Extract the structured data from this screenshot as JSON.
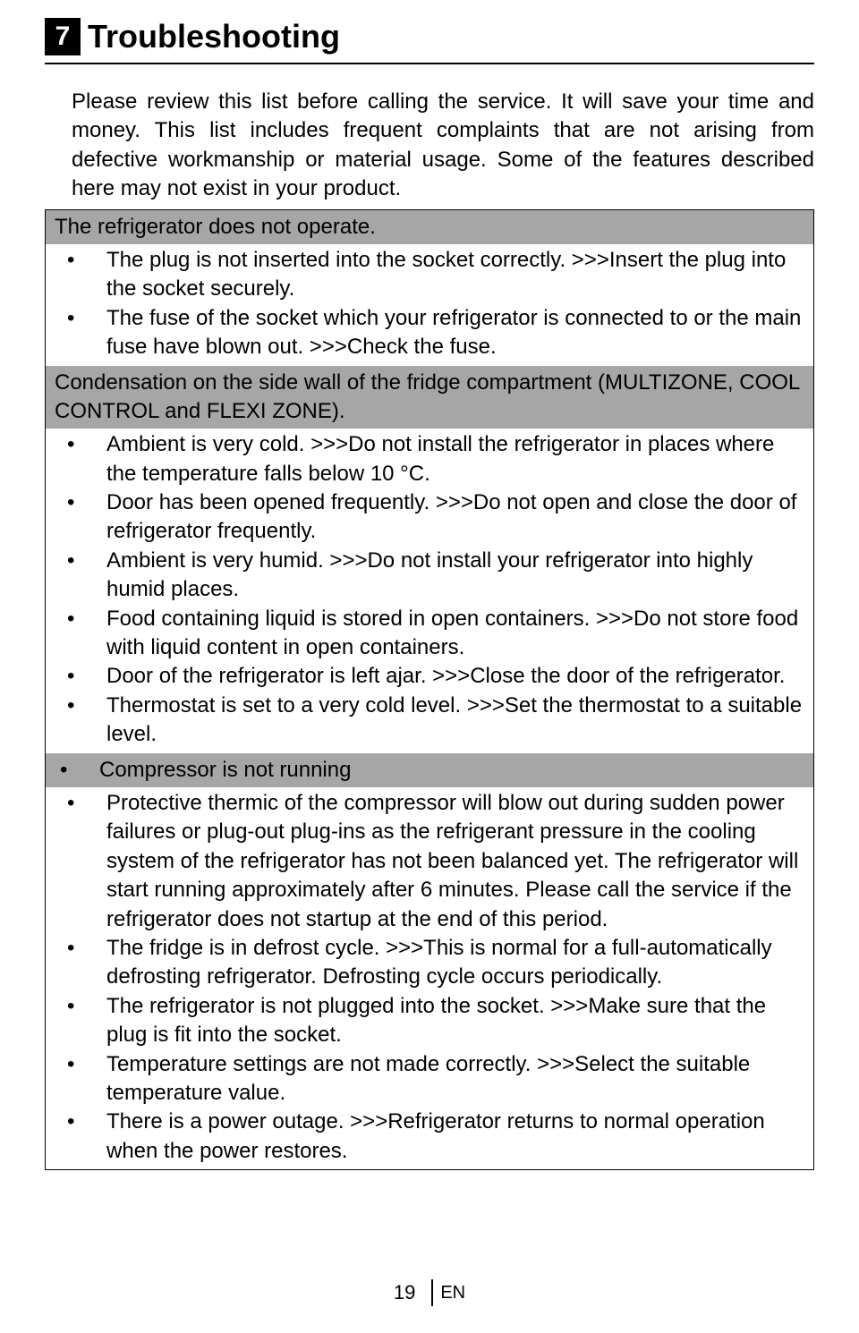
{
  "chapter": {
    "number": "7",
    "title": "Troubleshooting"
  },
  "intro": "Please review this list before calling the service. It will save your time and money. This list includes frequent complaints that are not arising from defective workmanship or material usage. Some of the features described here may not exist in your product.",
  "sections": [
    {
      "header": "The refrigerator does not operate.",
      "items": [
        "The plug is not inserted into the socket correctly. >>>Insert the plug into the socket securely.",
        "The fuse of the socket which your refrigerator is connected to or the main fuse have blown out. >>>Check the fuse."
      ]
    },
    {
      "header": "Condensation on the side wall of the fridge compartment (MULTIZONE, COOL CONTROL and FLEXI ZONE).",
      "items": [
        "Ambient is very cold. >>>Do not install the refrigerator in places where the temperature falls below 10 °C.",
        "Door has been opened frequently. >>>Do not open and close the door of refrigerator frequently.",
        "Ambient is very humid. >>>Do not install your refrigerator into highly humid places.",
        "Food containing liquid is stored in open containers. >>>Do not store food with liquid content in open containers.",
        "Door of the refrigerator is left ajar. >>>Close the door of the refrigerator.",
        "Thermostat is set to a very cold level. >>>Set the thermostat to a suitable level."
      ]
    },
    {
      "header_bulleted": "Compressor is not running",
      "items": [
        "Protective thermic of the compressor will blow out during sudden power failures or plug-out plug-ins as the refrigerant pressure in the cooling system of the refrigerator has not been balanced yet. The refrigerator will start running approximately after 6 minutes. Please call the service if the refrigerator does not startup at the end of this period.",
        "The fridge is in defrost cycle. >>>This is normal for a full-automatically defrosting refrigerator. Defrosting cycle occurs periodically.",
        "The refrigerator is not plugged into the socket. >>>Make sure that the plug is fit into the socket.",
        "Temperature settings are not made correctly. >>>Select the suitable temperature value.",
        "There is a power outage. >>>Refrigerator returns to normal operation when the power restores."
      ]
    }
  ],
  "footer": {
    "page": "19",
    "lang": "EN"
  },
  "colors": {
    "section_bg": "#a6a6a6",
    "text": "#000000",
    "page_bg": "#ffffff"
  }
}
